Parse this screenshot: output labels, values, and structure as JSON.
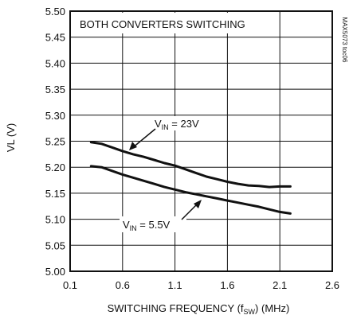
{
  "chart_data": {
    "type": "line",
    "title": "",
    "xlabel": {
      "pre": "SWITCHING FREQUENCY (f",
      "sub": "SW",
      "post": ") (MHz)"
    },
    "ylabel": "VL (V)",
    "xlim": [
      0.1,
      2.6
    ],
    "ylim": [
      5.0,
      5.5
    ],
    "xticks": [
      "0.1",
      "0.6",
      "1.1",
      "1.6",
      "2.1",
      "2.6"
    ],
    "yticks": [
      "5.00",
      "5.05",
      "5.10",
      "5.15",
      "5.20",
      "5.25",
      "5.30",
      "5.35",
      "5.40",
      "5.45",
      "5.50"
    ],
    "grid": true,
    "condition_label": "BOTH CONVERTERS SWITCHING",
    "side_label": "MAX5073 toc06",
    "series": [
      {
        "label": {
          "pre": "V",
          "sub": "IN",
          "post": " = 23V"
        },
        "x": [
          0.3,
          0.4,
          0.5,
          0.6,
          0.7,
          0.8,
          0.9,
          1.0,
          1.1,
          1.2,
          1.3,
          1.4,
          1.5,
          1.6,
          1.7,
          1.8,
          1.9,
          2.0,
          2.1,
          2.2
        ],
        "y": [
          5.248,
          5.245,
          5.238,
          5.231,
          5.225,
          5.22,
          5.214,
          5.208,
          5.203,
          5.196,
          5.189,
          5.182,
          5.177,
          5.172,
          5.168,
          5.165,
          5.164,
          5.162,
          5.163,
          5.163
        ]
      },
      {
        "label": {
          "pre": "V",
          "sub": "IN",
          "post": " = 5.5V"
        },
        "x": [
          0.3,
          0.4,
          0.5,
          0.6,
          0.7,
          0.8,
          0.9,
          1.0,
          1.1,
          1.2,
          1.3,
          1.4,
          1.5,
          1.6,
          1.7,
          1.8,
          1.9,
          2.0,
          2.1,
          2.2
        ],
        "y": [
          5.202,
          5.2,
          5.193,
          5.186,
          5.18,
          5.174,
          5.168,
          5.162,
          5.157,
          5.152,
          5.148,
          5.144,
          5.14,
          5.136,
          5.132,
          5.128,
          5.124,
          5.119,
          5.114,
          5.111
        ]
      }
    ],
    "line_color": "#111111"
  }
}
